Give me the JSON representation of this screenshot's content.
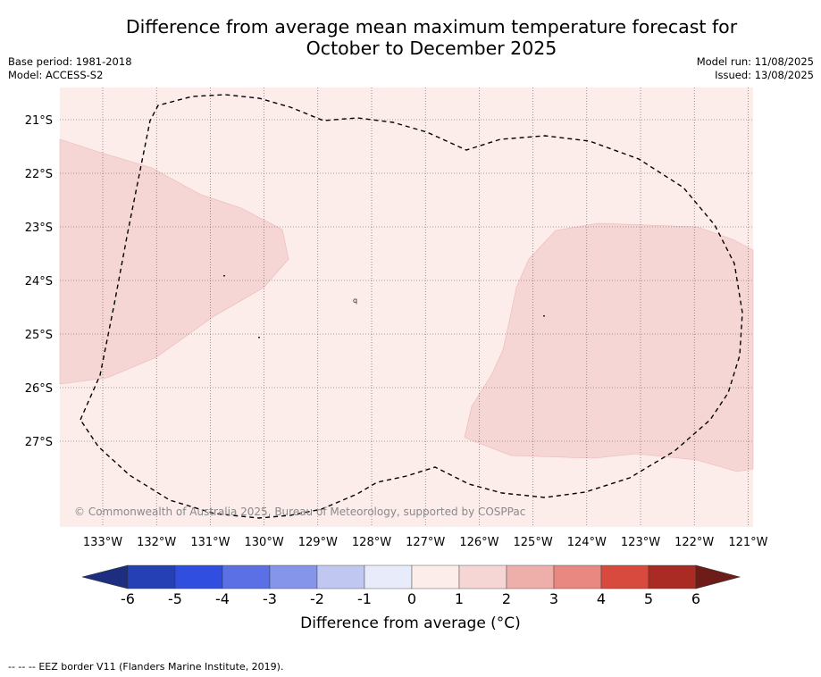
{
  "header": {
    "title_line1": "Difference from average mean maximum temperature forecast for",
    "title_line2": "October to December 2025",
    "base_period": "Base period: 1981-2018",
    "model": "Model: ACCESS-S2",
    "model_run": "Model run: 11/08/2025",
    "issued": "Issued: 13/08/2025"
  },
  "map": {
    "lon_labels": [
      "133°W",
      "132°W",
      "131°W",
      "130°W",
      "129°W",
      "128°W",
      "127°W",
      "126°W",
      "125°W",
      "124°W",
      "123°W",
      "122°W",
      "121°W"
    ],
    "lat_labels": [
      "21°S",
      "22°S",
      "23°S",
      "24°S",
      "25°S",
      "26°S",
      "27°S"
    ],
    "copyright": "© Commonwealth of Australia 2025, Bureau of Meteorology, supported by COSPPac",
    "background_class_color": "#fcecea",
    "anomaly_patch_color": "#f6d6d5",
    "island_label": "q"
  },
  "colorbar": {
    "ticks": [
      "-6",
      "-5",
      "-4",
      "-3",
      "-2",
      "-1",
      "0",
      "1",
      "2",
      "3",
      "4",
      "5",
      "6"
    ],
    "colors": [
      "#1d2d80",
      "#2540b5",
      "#304ee0",
      "#5a70e4",
      "#8595ea",
      "#c0c8f2",
      "#e8ebfa",
      "#fcecea",
      "#f6d6d5",
      "#eeaea9",
      "#e88880",
      "#d94a3e",
      "#a92b24",
      "#6e1c18"
    ],
    "label": "Difference from average (°C)"
  },
  "footer": {
    "legend_dash": "--  --  --",
    "legend_text": "EEZ border V11 (Flanders Marine Institute, 2019)."
  }
}
